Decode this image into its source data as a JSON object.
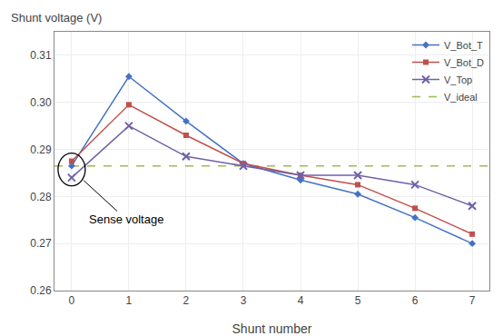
{
  "chart_data": {
    "type": "line",
    "xlabel": "Shunt number",
    "ylabel": "Shunt voltage (V)",
    "x": [
      0,
      1,
      2,
      3,
      4,
      5,
      6,
      7
    ],
    "series": [
      {
        "name": "V_Bot_T",
        "color": "#4472C4",
        "marker": "diamond",
        "line_style": "solid",
        "values": [
          0.2865,
          0.3055,
          0.296,
          0.287,
          0.2835,
          0.2805,
          0.2755,
          0.27
        ]
      },
      {
        "name": "V_Bot_D",
        "color": "#C0504D",
        "marker": "square",
        "line_style": "solid",
        "values": [
          0.2875,
          0.2995,
          0.293,
          0.287,
          0.2845,
          0.2825,
          0.2775,
          0.272
        ]
      },
      {
        "name": "V_Top",
        "color": "#7060A8",
        "marker": "x",
        "line_style": "solid",
        "values": [
          0.284,
          0.295,
          0.2885,
          0.2865,
          0.2845,
          0.2845,
          0.2825,
          0.278
        ]
      },
      {
        "name": "V_ideal",
        "type": "hline",
        "color": "#9BBB59",
        "line_style": "dashed",
        "value": 0.2865
      }
    ],
    "xlim": [
      -0.3,
      7.3
    ],
    "ylim": [
      0.26,
      0.315
    ],
    "xticks": [
      0,
      1,
      2,
      3,
      4,
      5,
      6,
      7
    ],
    "yticks": [
      0.26,
      0.27,
      0.28,
      0.29,
      {
        "value": 0.3,
        "label": "0.30"
      },
      0.31
    ],
    "grid": true,
    "legend": "upper right",
    "annotations": [
      {
        "text": "Sense voltage"
      }
    ]
  }
}
